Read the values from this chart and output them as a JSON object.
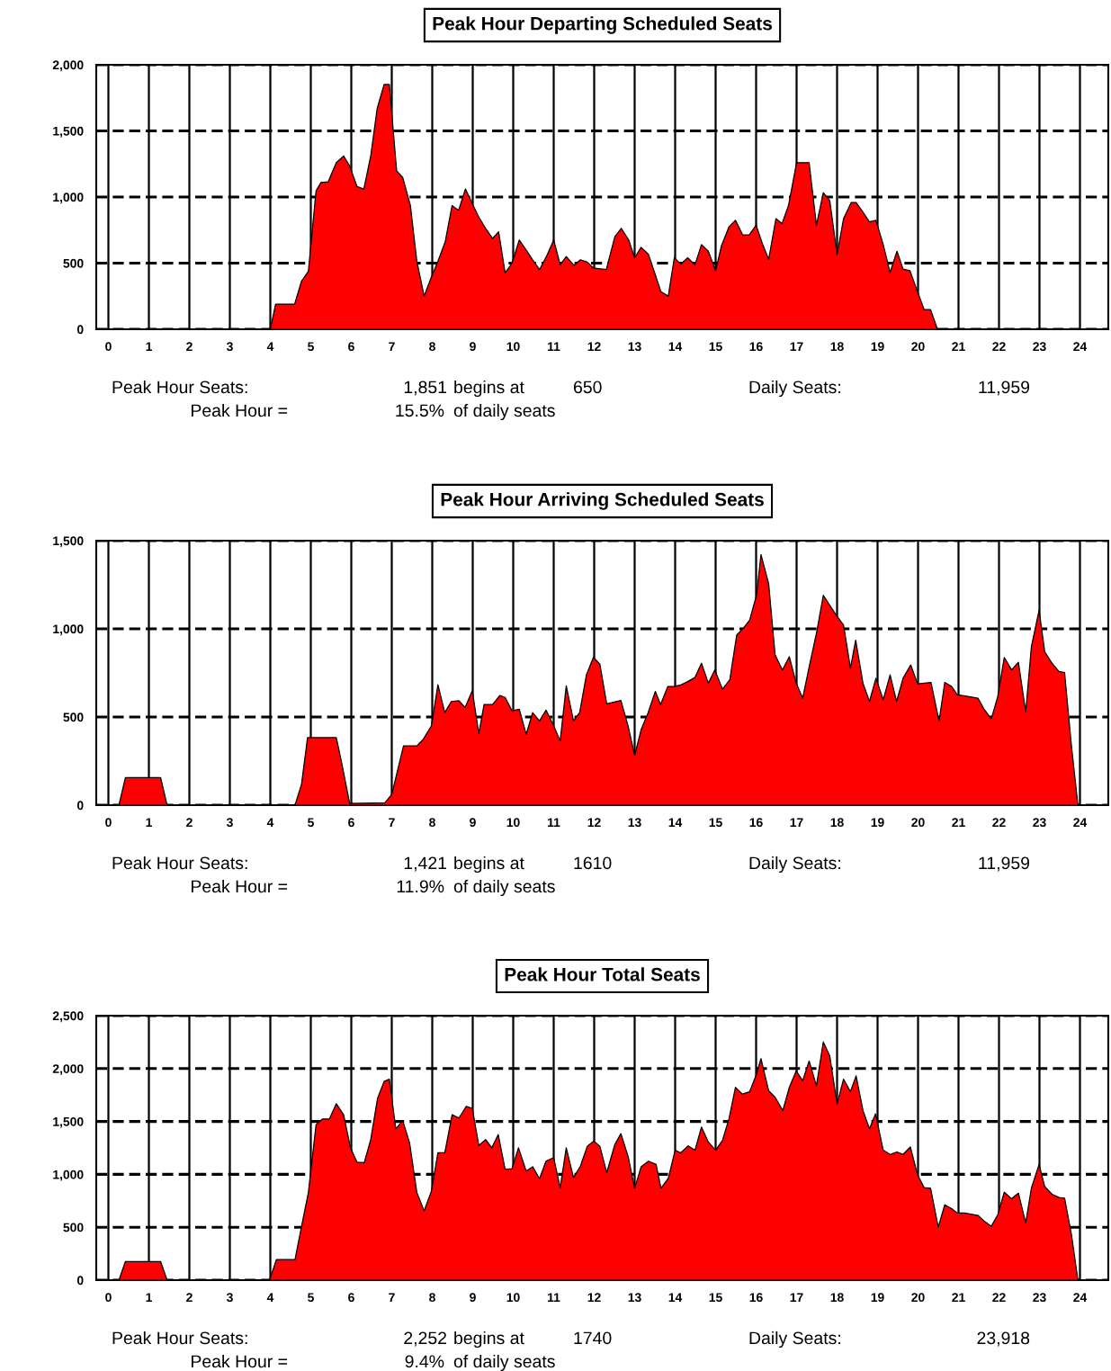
{
  "chart_data": [
    {
      "type": "area",
      "title": "Peak Hour Departing Scheduled Seats",
      "series": [
        {
          "color": "#ff0000",
          "x": [
            0,
            4.0,
            4.13,
            4.6,
            4.77,
            4.94,
            5.13,
            5.25,
            5.43,
            5.63,
            5.81,
            5.96,
            6.14,
            6.31,
            6.48,
            6.64,
            6.81,
            6.94,
            7.12,
            7.27,
            7.46,
            7.62,
            7.8,
            7.97,
            8.14,
            8.32,
            8.49,
            8.65,
            8.82,
            8.99,
            9.15,
            9.32,
            9.49,
            9.64,
            9.8,
            9.97,
            10.15,
            10.32,
            10.48,
            10.65,
            10.82,
            11.0,
            11.16,
            11.31,
            11.5,
            11.66,
            11.83,
            11.98,
            12.3,
            12.51,
            12.67,
            12.85,
            13.0,
            13.16,
            13.34,
            13.49,
            13.65,
            13.83,
            13.98,
            14.14,
            14.31,
            14.49,
            14.65,
            14.82,
            15.0,
            15.14,
            15.33,
            15.49,
            15.67,
            15.83,
            16.0,
            16.15,
            16.31,
            16.49,
            16.64,
            16.8,
            17.0,
            17.15,
            17.31,
            17.49,
            17.66,
            17.82,
            18.0,
            18.16,
            18.35,
            18.47,
            18.64,
            18.8,
            18.96,
            19.14,
            19.31,
            19.48,
            19.63,
            19.8,
            19.99,
            20.15,
            20.31,
            20.48,
            24
          ],
          "values": [
            0,
            0,
            190,
            190,
            364,
            438,
            1048,
            1110,
            1115,
            1260,
            1310,
            1235,
            1080,
            1060,
            1310,
            1670,
            1851,
            1851,
            1198,
            1148,
            936,
            513,
            251,
            388,
            513,
            662,
            936,
            899,
            1061,
            949,
            849,
            762,
            687,
            737,
            426,
            500,
            675,
            600,
            525,
            451,
            550,
            675,
            488,
            550,
            483,
            525,
            508,
            463,
            451,
            700,
            763,
            677,
            541,
            620,
            566,
            430,
            283,
            251,
            541,
            492,
            541,
            487,
            640,
            590,
            443,
            627,
            775,
            824,
            713,
            713,
            787,
            652,
            529,
            836,
            800,
            935,
            1260,
            1260,
            1260,
            787,
            1033,
            972,
            566,
            836,
            959,
            959,
            886,
            812,
            824,
            640,
            430,
            590,
            455,
            443,
            283,
            148,
            148,
            0,
            0
          ]
        }
      ],
      "xlim": [
        -0.3,
        24.7
      ],
      "xticks": [
        0,
        1,
        2,
        3,
        4,
        5,
        6,
        7,
        8,
        9,
        10,
        11,
        12,
        13,
        14,
        15,
        16,
        17,
        18,
        19,
        20,
        21,
        22,
        23,
        24
      ],
      "ylim": [
        0,
        2000
      ],
      "yticks": [
        0,
        500,
        {
          "value": 1000,
          "label": "1,000"
        },
        {
          "value": 1500,
          "label": "1,500"
        },
        {
          "value": 2000,
          "label": "2,000"
        }
      ],
      "grid": true,
      "annotations": [
        "Peak Hour Seats:",
        "1,851",
        "begins at",
        "650",
        "Daily Seats:",
        "11,959",
        "Peak Hour =",
        "15.5%",
        "of daily seats"
      ]
    },
    {
      "type": "area",
      "title": "Peak Hour Arriving Scheduled Seats",
      "series": [
        {
          "color": "#ff0000",
          "x": [
            0,
            0.26,
            0.42,
            1.29,
            1.45,
            4.61,
            4.77,
            4.92,
            5.63,
            5.77,
            5.96,
            6.83,
            7.0,
            7.29,
            7.62,
            7.78,
            7.98,
            8.14,
            8.31,
            8.47,
            8.66,
            8.81,
            8.99,
            9.15,
            9.28,
            9.49,
            9.67,
            9.8,
            9.97,
            10.15,
            10.32,
            10.48,
            10.65,
            10.81,
            11.0,
            11.16,
            11.31,
            11.49,
            11.64,
            11.81,
            11.98,
            12.14,
            12.31,
            12.66,
            12.84,
            13.0,
            13.16,
            13.33,
            13.51,
            13.64,
            13.82,
            13.98,
            14.14,
            14.31,
            14.49,
            14.65,
            14.82,
            14.98,
            15.17,
            15.35,
            15.52,
            15.68,
            15.84,
            16.01,
            16.12,
            16.31,
            16.47,
            16.65,
            16.82,
            16.99,
            17.15,
            17.33,
            17.49,
            17.66,
            17.82,
            17.98,
            18.16,
            18.33,
            18.46,
            18.64,
            18.8,
            18.96,
            19.14,
            19.31,
            19.47,
            19.63,
            19.82,
            19.99,
            20.32,
            20.52,
            20.66,
            20.83,
            20.97,
            21.13,
            21.48,
            21.64,
            21.81,
            21.97,
            22.13,
            22.31,
            22.48,
            22.66,
            22.8,
            22.99,
            23.13,
            23.31,
            23.48,
            23.62,
            23.79,
            23.95
          ],
          "values": [
            0,
            0,
            156,
            156,
            0,
            0,
            118,
            383,
            383,
            231,
            10,
            13,
            61,
            336,
            336,
            374,
            450,
            683,
            525,
            588,
            592,
            554,
            649,
            406,
            571,
            571,
            622,
            611,
            535,
            544,
            402,
            525,
            478,
            539,
            450,
            364,
            677,
            478,
            525,
            740,
            838,
            800,
            575,
            594,
            447,
            282,
            429,
            523,
            645,
            570,
            673,
            673,
            682,
            701,
            724,
            805,
            692,
            767,
            658,
            711,
            964,
            1002,
            1049,
            1190,
            1421,
            1256,
            852,
            767,
            842,
            692,
            607,
            805,
            974,
            1190,
            1134,
            1077,
            1021,
            777,
            936,
            692,
            588,
            720,
            598,
            739,
            588,
            720,
            795,
            688,
            696,
            476,
            696,
            673,
            626,
            620,
            607,
            541,
            489,
            617,
            838,
            767,
            810,
            528,
            899,
            1105,
            870,
            805,
            758,
            752,
            335,
            0
          ]
        }
      ],
      "xlim": [
        -0.3,
        24.7
      ],
      "xticks": [
        0,
        1,
        2,
        3,
        4,
        5,
        6,
        7,
        8,
        9,
        10,
        11,
        12,
        13,
        14,
        15,
        16,
        17,
        18,
        19,
        20,
        21,
        22,
        23,
        24
      ],
      "ylim": [
        0,
        1500
      ],
      "yticks": [
        0,
        500,
        {
          "value": 1000,
          "label": "1,000"
        },
        {
          "value": 1500,
          "label": "1,500"
        }
      ],
      "grid": true,
      "annotations": [
        "Peak Hour Seats:",
        "1,421",
        "begins at",
        "1610",
        "Daily Seats:",
        "11,959",
        "Peak Hour =",
        "11.9%",
        "of daily seats"
      ]
    },
    {
      "type": "area",
      "title": "Peak Hour Total Seats",
      "series": [
        {
          "color": "#ff0000",
          "x": [
            0,
            0.26,
            0.42,
            1.29,
            1.45,
            3.98,
            4.15,
            4.61,
            4.77,
            4.94,
            5.13,
            5.29,
            5.46,
            5.63,
            5.81,
            5.98,
            6.14,
            6.32,
            6.48,
            6.65,
            6.81,
            6.94,
            7.1,
            7.27,
            7.44,
            7.62,
            7.8,
            7.98,
            8.14,
            8.31,
            8.49,
            8.66,
            8.84,
            8.99,
            9.15,
            9.32,
            9.47,
            9.63,
            9.8,
            9.97,
            10.13,
            10.32,
            10.48,
            10.65,
            10.81,
            11.0,
            11.16,
            11.31,
            11.49,
            11.66,
            11.83,
            11.99,
            12.14,
            12.31,
            12.51,
            12.66,
            12.84,
            13.0,
            13.16,
            13.34,
            13.53,
            13.65,
            13.83,
            14.0,
            14.14,
            14.32,
            14.49,
            14.65,
            14.82,
            15.0,
            15.17,
            15.33,
            15.49,
            15.66,
            15.84,
            16.01,
            16.12,
            16.31,
            16.47,
            16.66,
            16.82,
            16.99,
            17.15,
            17.31,
            17.49,
            17.66,
            17.82,
            18.0,
            18.16,
            18.33,
            18.47,
            18.64,
            18.8,
            18.95,
            19.14,
            19.31,
            19.48,
            19.63,
            19.81,
            19.99,
            20.15,
            20.31,
            20.5,
            20.66,
            20.83,
            20.97,
            21.15,
            21.48,
            21.64,
            21.81,
            21.97,
            22.13,
            22.31,
            22.48,
            22.66,
            22.8,
            22.99,
            23.13,
            23.31,
            23.48,
            23.62,
            23.79,
            23.95
          ],
          "values": [
            0,
            0,
            176,
            176,
            0,
            0,
            194,
            194,
            508,
            828,
            1470,
            1524,
            1524,
            1668,
            1564,
            1251,
            1116,
            1110,
            1329,
            1721,
            1878,
            1900,
            1430,
            1508,
            1298,
            828,
            655,
            843,
            1204,
            1204,
            1564,
            1533,
            1643,
            1624,
            1273,
            1329,
            1251,
            1376,
            1047,
            1053,
            1251,
            1031,
            1072,
            959,
            1125,
            1157,
            875,
            1251,
            969,
            1078,
            1266,
            1314,
            1266,
            1016,
            1282,
            1385,
            1166,
            869,
            1072,
            1125,
            1094,
            869,
            962,
            1228,
            1203,
            1269,
            1228,
            1447,
            1306,
            1228,
            1322,
            1525,
            1822,
            1759,
            1781,
            1947,
            2094,
            1791,
            1728,
            1603,
            1822,
            1978,
            1884,
            2072,
            1838,
            2252,
            2119,
            1666,
            1900,
            1781,
            1931,
            1603,
            1431,
            1572,
            1228,
            1188,
            1212,
            1188,
            1259,
            994,
            875,
            869,
            500,
            712,
            675,
            634,
            634,
            612,
            556,
            509,
            619,
            831,
            769,
            822,
            541,
            869,
            1094,
            884,
            812,
            781,
            775,
            431,
            0
          ]
        }
      ],
      "xlim": [
        -0.3,
        24.7
      ],
      "xticks": [
        0,
        1,
        2,
        3,
        4,
        5,
        6,
        7,
        8,
        9,
        10,
        11,
        12,
        13,
        14,
        15,
        16,
        17,
        18,
        19,
        20,
        21,
        22,
        23,
        24
      ],
      "ylim": [
        0,
        2500
      ],
      "yticks": [
        0,
        500,
        {
          "value": 1000,
          "label": "1,000"
        },
        {
          "value": 1500,
          "label": "1,500"
        },
        {
          "value": 2000,
          "label": "2,000"
        },
        {
          "value": 2500,
          "label": "2,500"
        }
      ],
      "grid": true,
      "annotations": [
        "Peak Hour Seats:",
        "2,252",
        "begins at",
        "1740",
        "Daily Seats:",
        "23,918",
        "Peak Hour =",
        "9.4%",
        "of daily seats"
      ]
    }
  ]
}
